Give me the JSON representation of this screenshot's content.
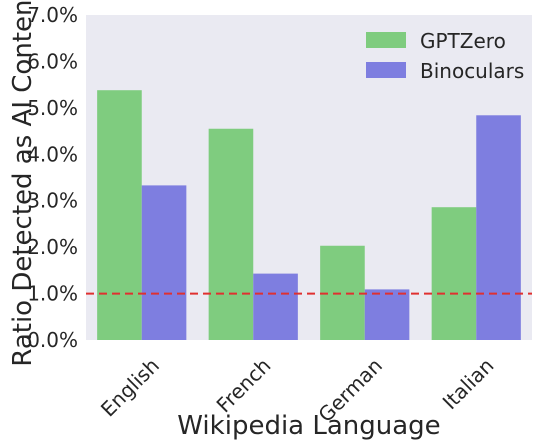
{
  "chart_data": {
    "type": "bar",
    "categories": [
      "English",
      "French",
      "German",
      "Italian"
    ],
    "series": [
      {
        "name": "GPTZero",
        "values": [
          5.38,
          4.55,
          2.03,
          2.86
        ],
        "color": "#7fcc7f"
      },
      {
        "name": "Binoculars",
        "values": [
          3.33,
          1.43,
          1.09,
          4.84
        ],
        "color": "#7e7ee0"
      }
    ],
    "xlabel": "Wikipedia Language",
    "ylabel": "Ratio Detected as AI Content",
    "ylim": [
      0,
      7
    ],
    "yticks": [
      0,
      1,
      2,
      3,
      4,
      5,
      6,
      7
    ],
    "ytick_format": "percent_1dp",
    "reference_line": {
      "y": 1.0,
      "color": "#e03030",
      "style": "dashed"
    },
    "legend": {
      "position": "top-right",
      "entries": [
        "GPTZero",
        "Binoculars"
      ]
    },
    "grid": false,
    "background_color": "#eaeaf2"
  }
}
